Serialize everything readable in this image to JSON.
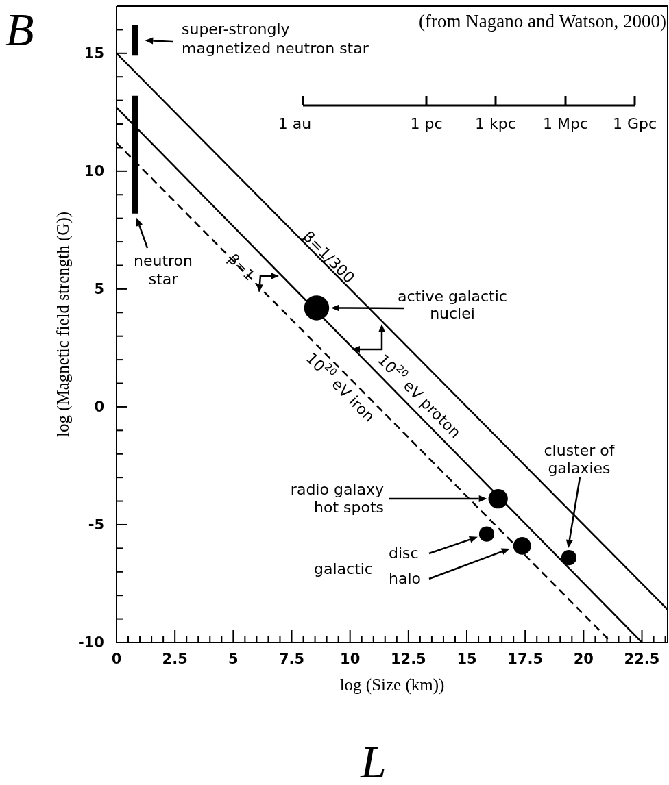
{
  "chart_data": {
    "type": "line",
    "xlabel": "log (Size (km))",
    "ylabel": "log (Magnetic field strength (G))",
    "xlim": [
      0,
      23.6
    ],
    "ylim": [
      -10,
      17
    ],
    "xticks": [
      0,
      {
        "value": 0.5,
        "label": null
      },
      {
        "value": 1,
        "label": null
      },
      {
        "value": 1.5,
        "label": null
      },
      {
        "value": 2,
        "label": null
      },
      2.5,
      {
        "value": 3,
        "label": null
      },
      {
        "value": 3.5,
        "label": null
      },
      {
        "value": 4,
        "label": null
      },
      {
        "value": 4.5,
        "label": null
      },
      5,
      {
        "value": 5.5,
        "label": null
      },
      {
        "value": 6,
        "label": null
      },
      {
        "value": 6.5,
        "label": null
      },
      {
        "value": 7,
        "label": null
      },
      7.5,
      {
        "value": 8,
        "label": null
      },
      {
        "value": 8.5,
        "label": null
      },
      {
        "value": 9,
        "label": null
      },
      {
        "value": 9.5,
        "label": null
      },
      10,
      {
        "value": 10.5,
        "label": null
      },
      {
        "value": 11,
        "label": null
      },
      {
        "value": 11.5,
        "label": null
      },
      {
        "value": 12,
        "label": null
      },
      12.5,
      {
        "value": 13,
        "label": null
      },
      {
        "value": 13.5,
        "label": null
      },
      {
        "value": 14,
        "label": null
      },
      {
        "value": 14.5,
        "label": null
      },
      15,
      {
        "value": 15.5,
        "label": null
      },
      {
        "value": 16,
        "label": null
      },
      {
        "value": 16.5,
        "label": null
      },
      {
        "value": 17,
        "label": null
      },
      17.5,
      {
        "value": 18,
        "label": null
      },
      {
        "value": 18.5,
        "label": null
      },
      {
        "value": 19,
        "label": null
      },
      {
        "value": 19.5,
        "label": null
      },
      20,
      {
        "value": 20.5,
        "label": null
      },
      {
        "value": 21,
        "label": null
      },
      {
        "value": 21.5,
        "label": null
      },
      {
        "value": 22,
        "label": null
      },
      22.5,
      {
        "value": 23,
        "label": null
      },
      {
        "value": 23.5,
        "label": null
      }
    ],
    "yticks": [
      -10,
      {
        "value": -9,
        "label": null
      },
      {
        "value": -8,
        "label": null
      },
      {
        "value": -7,
        "label": null
      },
      {
        "value": -6,
        "label": null
      },
      -5,
      {
        "value": -4,
        "label": null
      },
      {
        "value": -3,
        "label": null
      },
      {
        "value": -2,
        "label": null
      },
      {
        "value": -1,
        "label": null
      },
      0,
      {
        "value": 1,
        "label": null
      },
      {
        "value": 2,
        "label": null
      },
      {
        "value": 3,
        "label": null
      },
      {
        "value": 4,
        "label": null
      },
      5,
      {
        "value": 6,
        "label": null
      },
      {
        "value": 7,
        "label": null
      },
      {
        "value": 8,
        "label": null
      },
      {
        "value": 9,
        "label": null
      },
      10,
      {
        "value": 11,
        "label": null
      },
      {
        "value": 12,
        "label": null
      },
      {
        "value": 13,
        "label": null
      },
      {
        "value": 14,
        "label": null
      },
      15,
      {
        "value": 16,
        "label": null
      }
    ],
    "series": [
      {
        "color": "#000000",
        "line_style": "solid",
        "x": [
          0,
          23.6
        ],
        "values": [
          15,
          -8.6
        ]
      },
      {
        "color": "#000000",
        "line_style": "solid",
        "x": [
          0,
          22.5
        ],
        "values": [
          12.7,
          -10
        ]
      },
      {
        "color": "#000000",
        "line_style": "dashed",
        "x": [
          0,
          21.2
        ],
        "values": [
          11.2,
          -10
        ]
      },
      {
        "color": "#000000",
        "line_style": "solid",
        "x": [
          0.8,
          0.8
        ],
        "values": [
          8.2,
          13.2
        ]
      },
      {
        "color": "#000000",
        "line_style": "solid",
        "x": [
          0.8,
          0.8
        ],
        "values": [
          14.9,
          16.2
        ]
      },
      {
        "type": "bubble",
        "color": "#000000",
        "marker": "circle",
        "x": [
          8.57,
          16.34,
          15.85,
          17.37,
          19.37
        ],
        "values": [
          4.2,
          -3.9,
          -5.4,
          -5.9,
          -6.4
        ],
        "sizes": [
          1,
          0.6,
          0.37,
          0.5,
          0.37
        ]
      }
    ],
    "annotations": [
      "(from Nagano and Watson, 2000)",
      "B",
      "L",
      "super-strongly magnetized neutron star",
      "neutron star",
      "active galactic nuclei",
      "radio galaxy hot spots",
      "galactic",
      "disc",
      "halo",
      "cluster of galaxies",
      "β=1/300",
      "β=1",
      "10$^{20}$ eV proton",
      "10$^{20}$ eV iron",
      "1 au",
      "1 pc",
      "1 kpc",
      "1 Mpc",
      "1 Gpc"
    ]
  }
}
